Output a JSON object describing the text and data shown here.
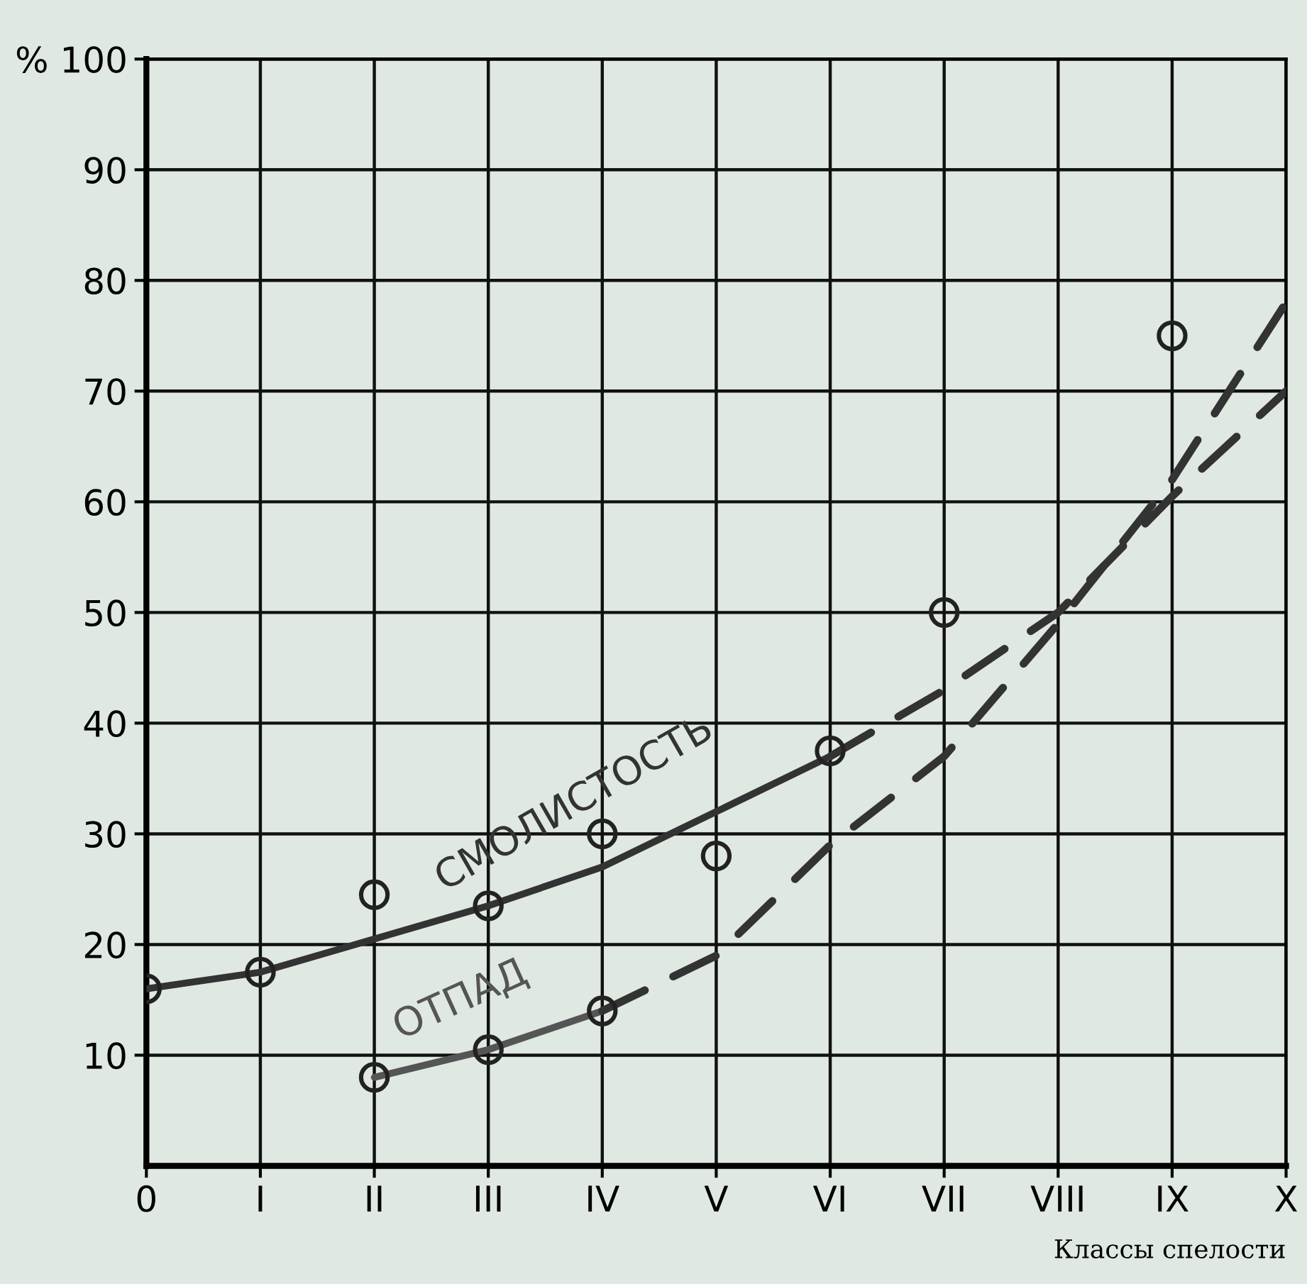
{
  "chart_data": {
    "type": "line",
    "xlabel": "Классы спелости",
    "categories": [
      "0",
      "I",
      "II",
      "III",
      "IV",
      "V",
      "VI",
      "VII",
      "VIII",
      "IX",
      "X"
    ],
    "ylim": [
      0,
      100
    ],
    "yticks": [
      10,
      20,
      30,
      40,
      50,
      60,
      70,
      80,
      90,
      {
        "value": 100,
        "label": "% 100"
      }
    ],
    "grid": true,
    "legend": false,
    "series": [
      {
        "name": "СМОЛИСТОСТЬ",
        "line_style": "solid",
        "color": "#333333",
        "values": [
          16,
          17.5,
          20.5,
          23.5,
          27,
          32,
          37,
          null,
          null,
          null,
          null
        ]
      },
      {
        "line_style": "dashed",
        "color": "#333333",
        "values": [
          null,
          null,
          null,
          null,
          null,
          null,
          37,
          43,
          50,
          60.5,
          70
        ]
      },
      {
        "name": "ОТПАД",
        "line_style": "solid",
        "color": "#555555",
        "values": [
          null,
          null,
          8,
          10.5,
          14,
          null,
          null,
          null,
          null,
          null,
          null
        ]
      },
      {
        "line_style": "dashed",
        "color": "#333333",
        "values": [
          null,
          null,
          null,
          null,
          14,
          19,
          29,
          37,
          49,
          62,
          78
        ]
      },
      {
        "type": "scatter",
        "marker": "circle",
        "color": "#222222",
        "values": [
          16,
          17.5,
          24.5,
          23.5,
          30,
          28,
          37.5,
          50,
          null,
          75,
          null
        ]
      },
      {
        "type": "scatter",
        "marker": "circle",
        "color": "#222222",
        "values": [
          null,
          null,
          8,
          10.5,
          14,
          null,
          null,
          null,
          null,
          null,
          null
        ]
      }
    ]
  }
}
